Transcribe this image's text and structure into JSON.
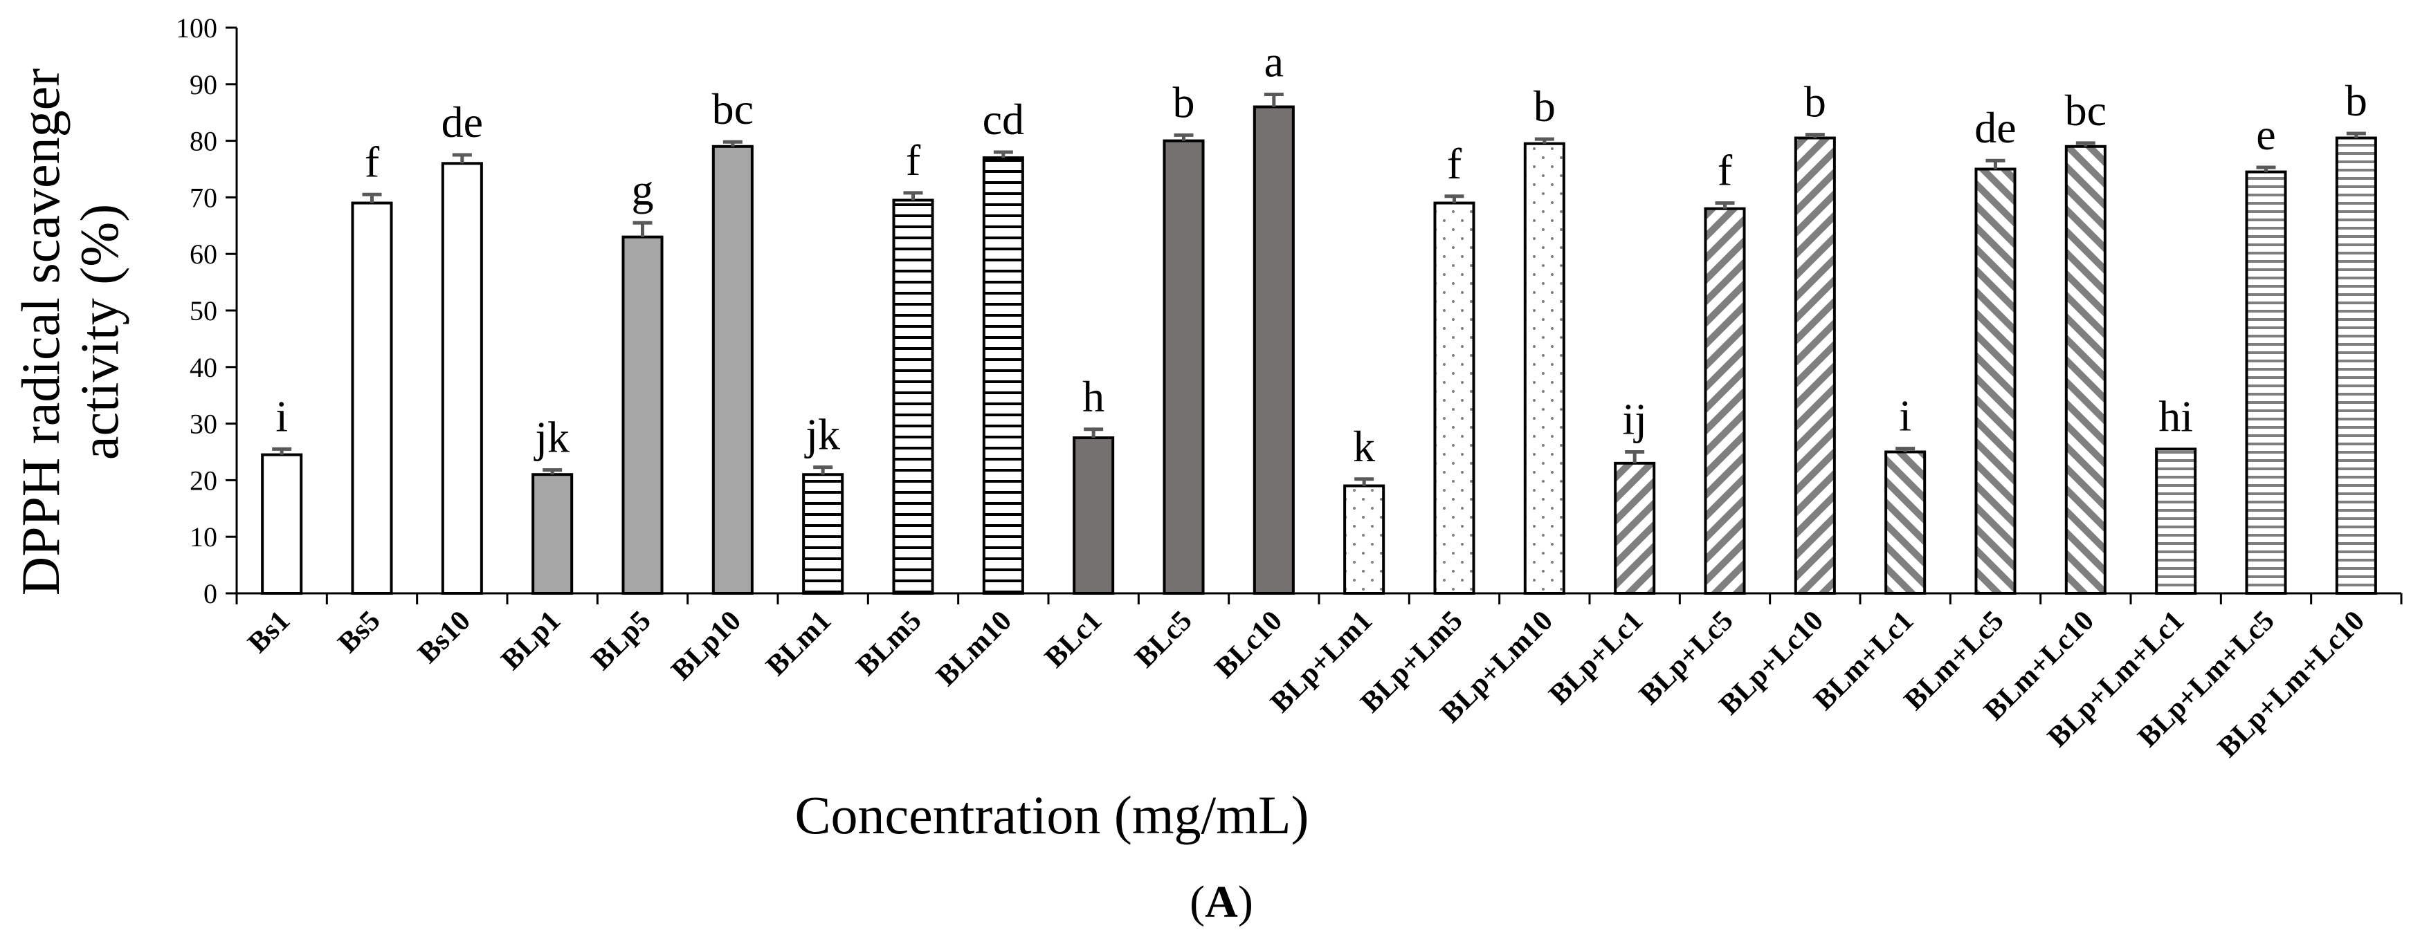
{
  "chart_data": {
    "type": "bar",
    "ylabel_line1": "DPPH radical scavenger",
    "ylabel_line2": "activity (%)",
    "xlabel": "Concentration (mg/mL)",
    "panel_label_open": "(",
    "panel_label_letter": "A",
    "panel_label_close": ")",
    "ylim": [
      0,
      100
    ],
    "yticks": [
      0,
      10,
      20,
      30,
      40,
      50,
      60,
      70,
      80,
      90,
      100
    ],
    "grid": false,
    "legend": "none",
    "categories": [
      "Bs1",
      "Bs5",
      "Bs10",
      "BLp1",
      "BLp5",
      "BLp10",
      "BLm1",
      "BLm5",
      "BLm10",
      "BLc1",
      "BLc5",
      "BLc10",
      "BLp+Lm1",
      "BLp+Lm5",
      "BLp+Lm10",
      "BLp+Lc1",
      "BLp+Lc5",
      "BLp+Lc10",
      "BLm+Lc1",
      "BLm+Lc5",
      "BLm+Lc10",
      "BLp+Lm+Lc1",
      "BLp+Lm+Lc5",
      "BLp+Lm+Lc10"
    ],
    "values": [
      24.5,
      69,
      76,
      21,
      63,
      79,
      21,
      69.5,
      77,
      27.5,
      80,
      86,
      19,
      69,
      79.5,
      23,
      68,
      80.5,
      25,
      75,
      79,
      25.5,
      74.5,
      80.5
    ],
    "errors": [
      1,
      1.5,
      1.5,
      0.8,
      2.5,
      0.8,
      1.3,
      1.3,
      1,
      1.5,
      1,
      2.2,
      1.2,
      1.2,
      0.8,
      2,
      1,
      0.6,
      0.6,
      1.5,
      0.6,
      0,
      0.8,
      0.8
    ],
    "sig_letters": [
      "i",
      "f",
      "de",
      "jk",
      "g",
      "bc",
      "jk",
      "f",
      "cd",
      "h",
      "b",
      "a",
      "k",
      "f",
      "b",
      "ij",
      "f",
      "b",
      "i",
      "de",
      "bc",
      "hi",
      "e",
      "b"
    ],
    "fills": [
      "white",
      "white",
      "white",
      "lightgray",
      "lightgray",
      "lightgray",
      "hstripe",
      "hstripe",
      "hstripe",
      "darkgray",
      "darkgray",
      "darkgray",
      "dots",
      "dots",
      "dots",
      "diag-thin",
      "diag-thin",
      "diag-thin",
      "diag-wide",
      "diag-wide",
      "diag-wide",
      "hstripe-gray",
      "hstripe-gray",
      "hstripe-gray"
    ],
    "colors": {
      "light_gray": "#a6a6a6",
      "dark_gray": "#767171",
      "pattern_gray": "#7f7f7f",
      "error_bar": "#595959",
      "outline": "#000000"
    }
  }
}
